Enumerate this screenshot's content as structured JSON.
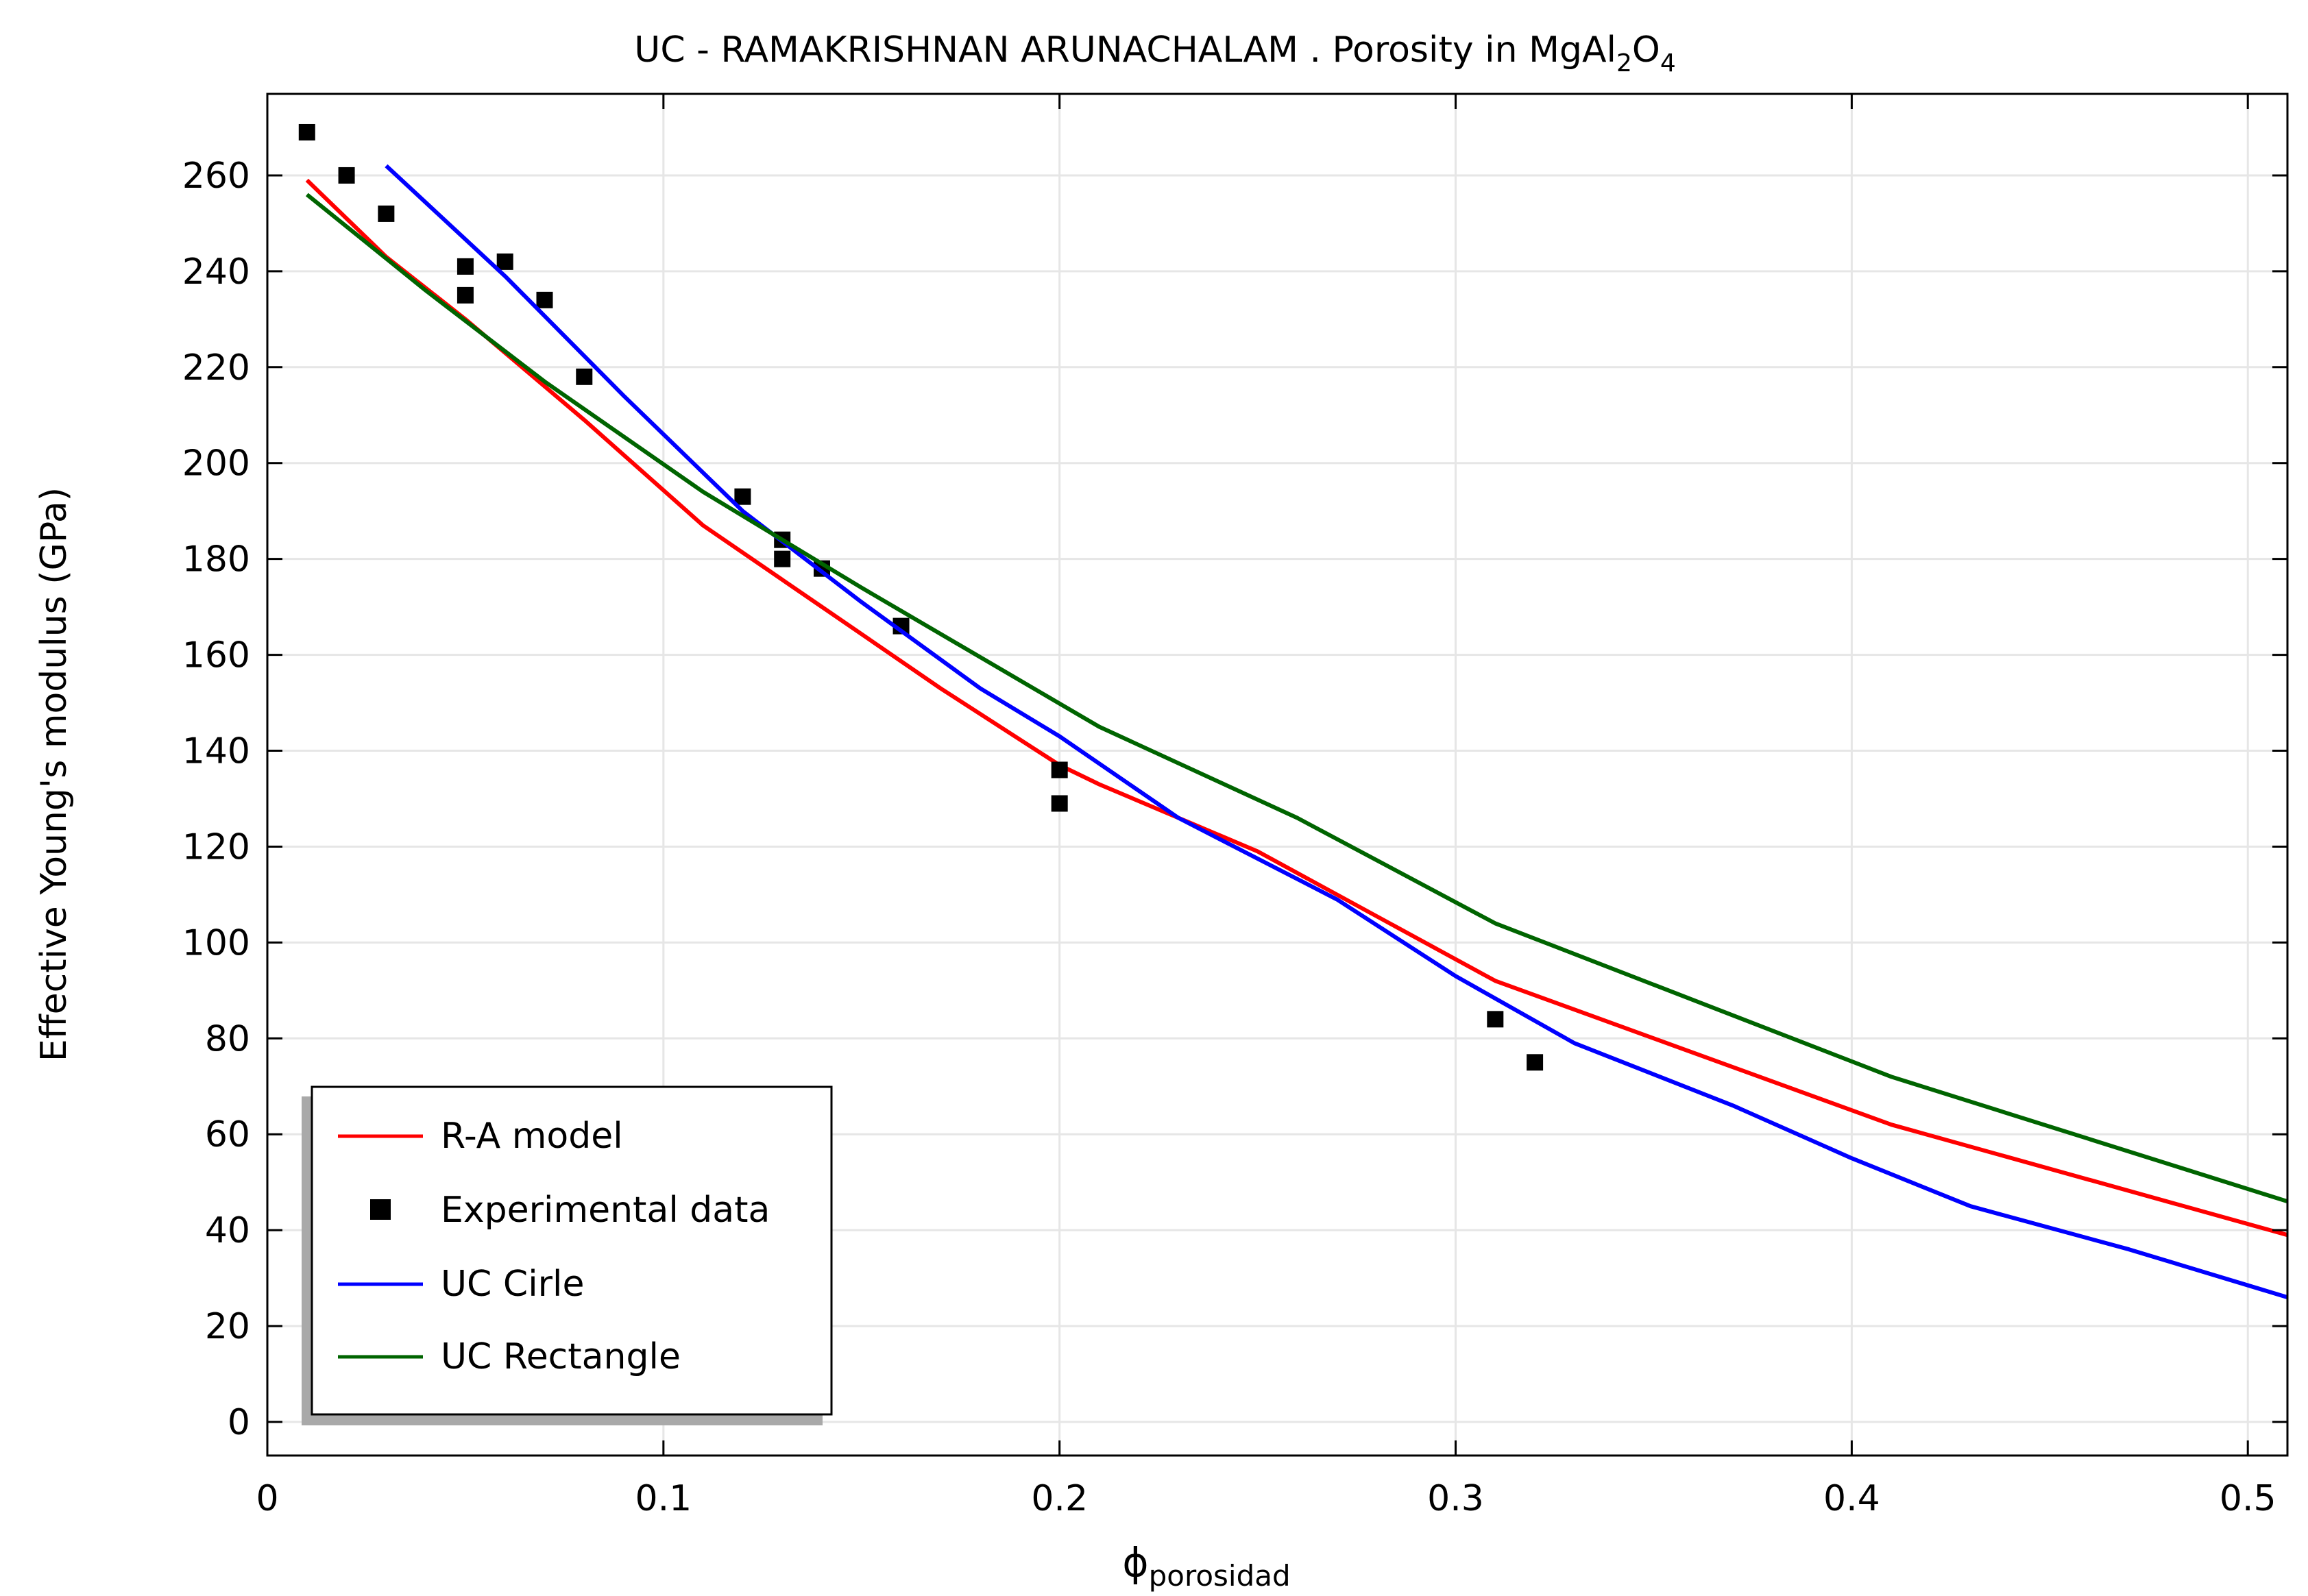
{
  "chart_data": {
    "type": "line",
    "title_main": "UC - RAMAKRISHNAN ARUNACHALAM . Porosity in MgAl",
    "title_sub1": "2",
    "title_mid": "O",
    "title_sub2": "4",
    "xlabel_symbol": "ϕ",
    "xlabel_sub": "porosidad",
    "ylabel": "Effective Young's modulus (GPa)",
    "xlim": [
      0,
      0.51
    ],
    "ylim": [
      -7,
      277
    ],
    "x_ticks": [
      0,
      0.1,
      0.2,
      0.3,
      0.4,
      0.5
    ],
    "x_tick_labels": [
      "0",
      "0.1",
      "0.2",
      "0.3",
      "0.4",
      "0.5"
    ],
    "y_ticks": [
      0,
      20,
      40,
      60,
      80,
      100,
      120,
      140,
      160,
      180,
      200,
      220,
      240,
      260
    ],
    "y_tick_labels": [
      "0",
      "20",
      "40",
      "60",
      "80",
      "100",
      "120",
      "140",
      "160",
      "180",
      "200",
      "220",
      "240",
      "260"
    ],
    "grid": true,
    "legend_position": "bottom-left",
    "series": [
      {
        "name": "R-A model",
        "kind": "line",
        "color": "#ff0000",
        "x": [
          0.01,
          0.03,
          0.05,
          0.08,
          0.11,
          0.14,
          0.17,
          0.2,
          0.21,
          0.25,
          0.31,
          0.41,
          0.51
        ],
        "y": [
          259,
          243,
          230,
          209,
          187,
          170,
          153,
          137,
          133,
          119,
          92,
          62,
          39
        ]
      },
      {
        "name": "Experimental data",
        "kind": "scatter",
        "color": "#000000",
        "x": [
          0.01,
          0.02,
          0.03,
          0.05,
          0.05,
          0.06,
          0.07,
          0.08,
          0.12,
          0.13,
          0.13,
          0.14,
          0.16,
          0.2,
          0.2,
          0.31,
          0.32
        ],
        "y": [
          269,
          260,
          252,
          241,
          235,
          242,
          234,
          218,
          193,
          184,
          180,
          178,
          166,
          136,
          129,
          84,
          75
        ]
      },
      {
        "name": "UC Cirle",
        "kind": "line",
        "color": "#0000ff",
        "x": [
          0.03,
          0.06,
          0.09,
          0.12,
          0.15,
          0.18,
          0.2,
          0.23,
          0.27,
          0.3,
          0.33,
          0.37,
          0.4,
          0.43,
          0.47,
          0.51
        ],
        "y": [
          262,
          239,
          214,
          190,
          171,
          153,
          143,
          126,
          109,
          93,
          79,
          66,
          55,
          45,
          36,
          26
        ]
      },
      {
        "name": "UC Rectangle",
        "kind": "line",
        "color": "#006400",
        "x": [
          0.01,
          0.04,
          0.07,
          0.11,
          0.15,
          0.21,
          0.26,
          0.31,
          0.36,
          0.41,
          0.46,
          0.51
        ],
        "y": [
          256,
          236,
          217,
          194,
          174,
          145,
          126,
          104,
          88,
          72,
          59,
          46
        ]
      }
    ]
  }
}
